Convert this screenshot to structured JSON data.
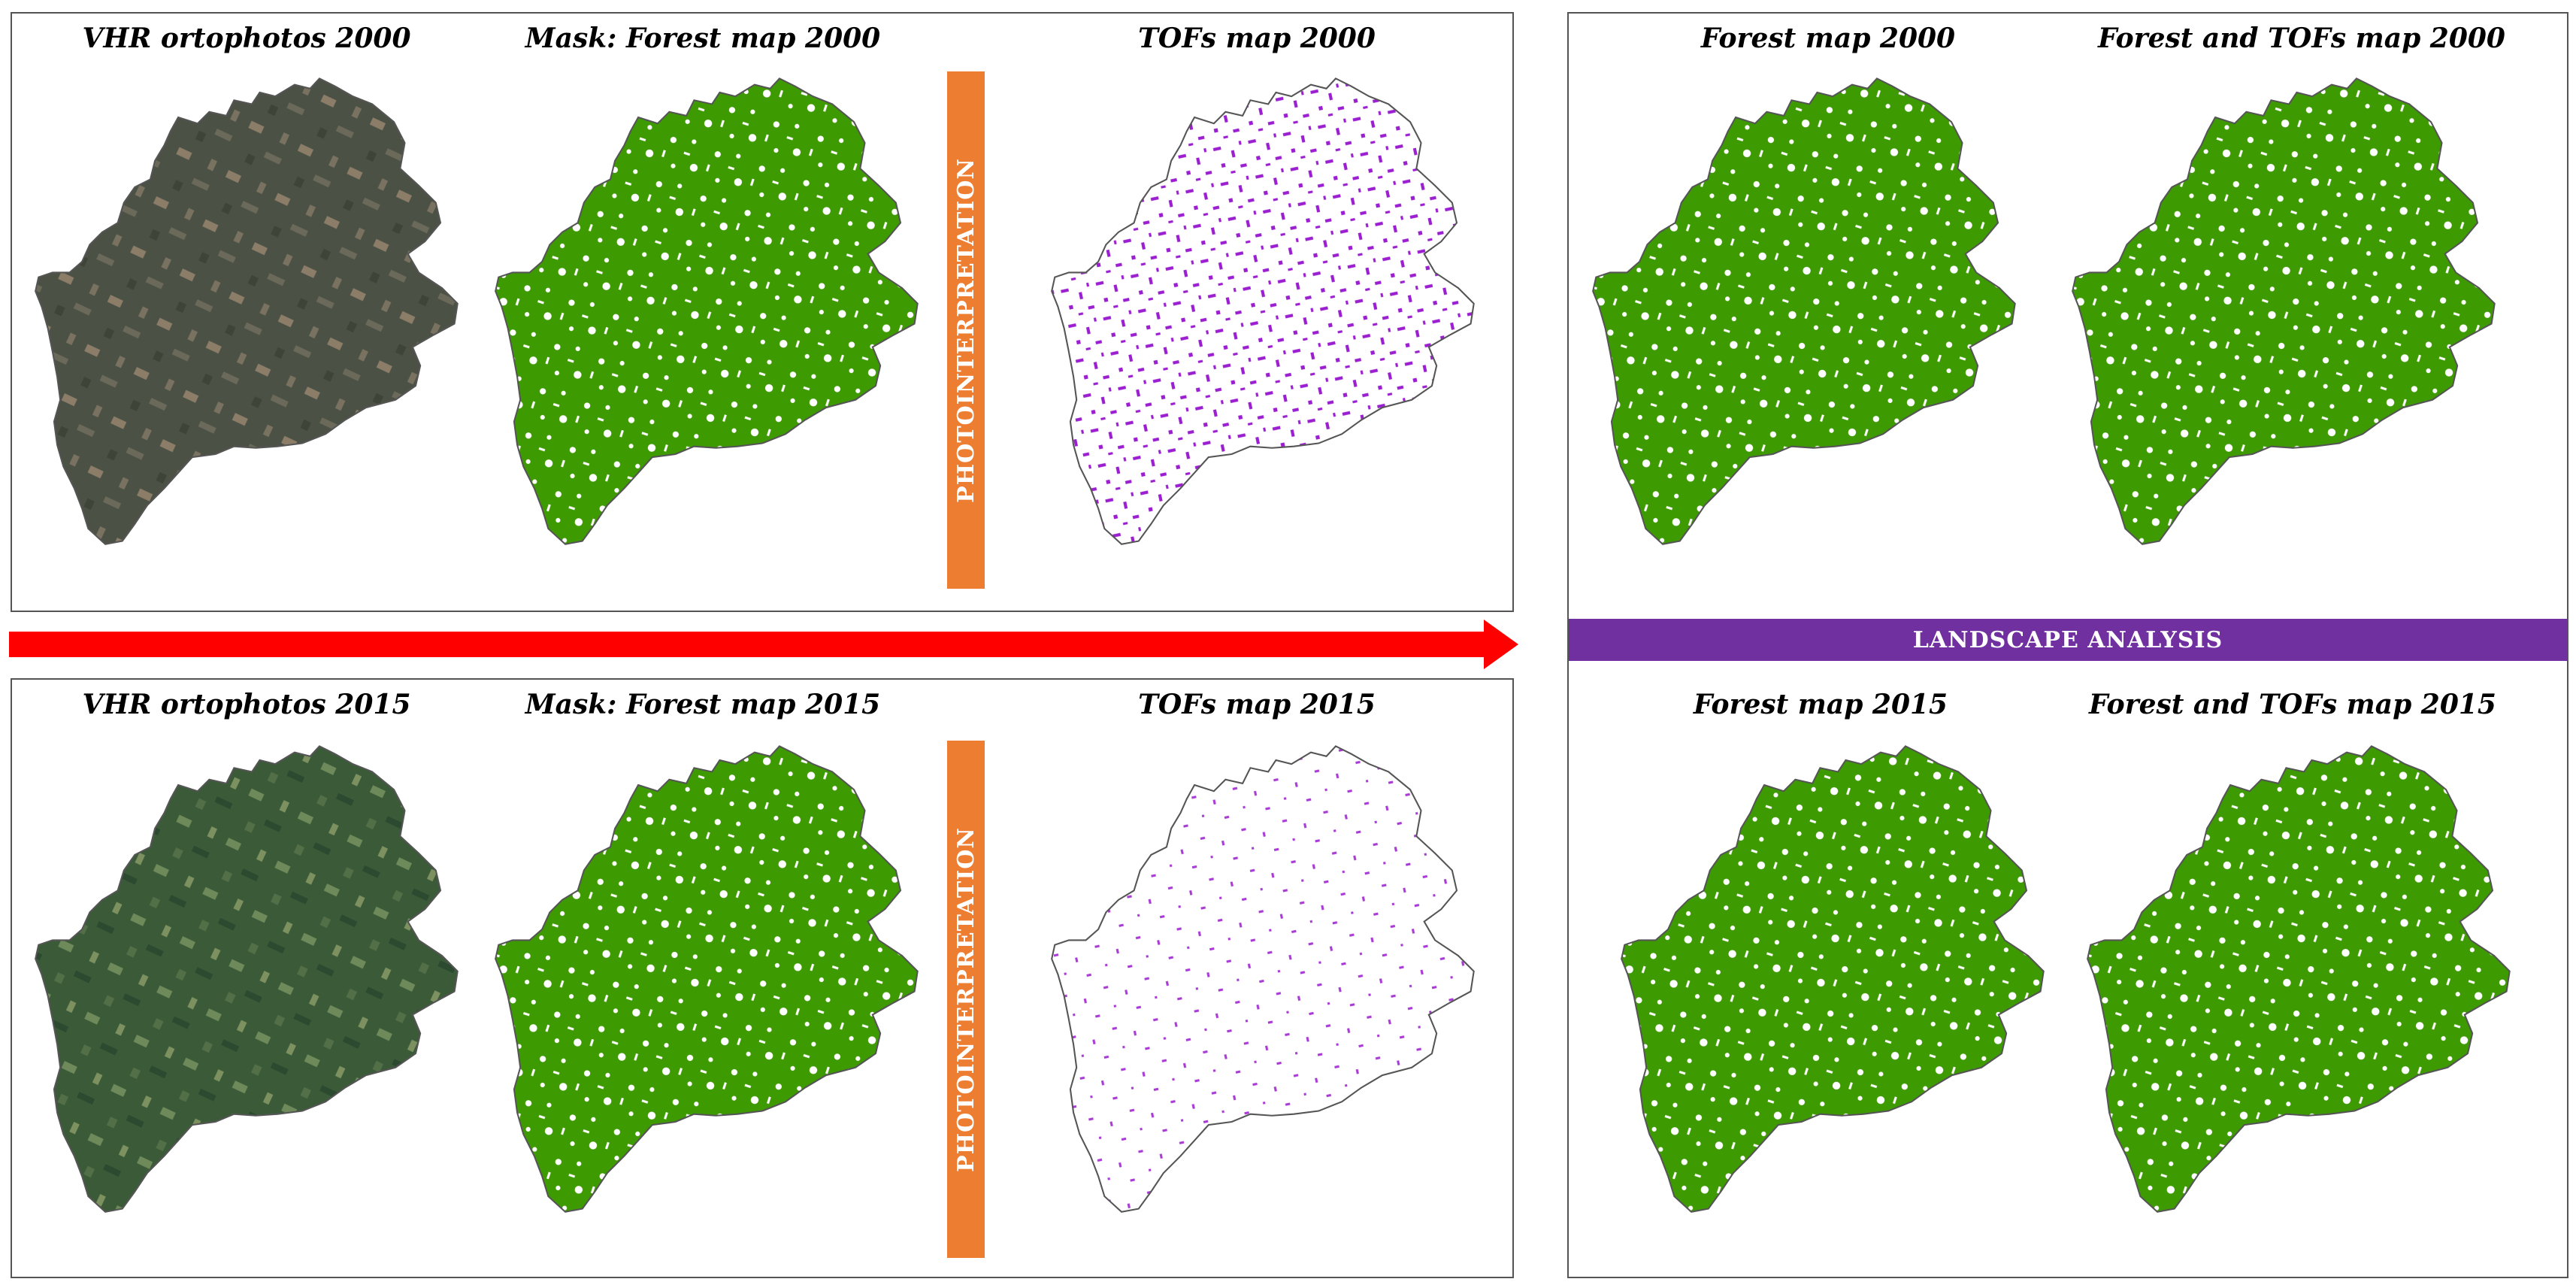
{
  "colors": {
    "forest": "#3d9a00",
    "tofs": "#9b1fd0",
    "ortho_2000_base": "#4b5145",
    "ortho_2000_tan": "#8b7d68",
    "ortho_2015_base": "#3a5a38",
    "ortho_2015_light": "#6e8a5a",
    "photointerpretation_bar": "#ed7d31",
    "landscape_bar": "#7030a0",
    "arrow": "#ff0000",
    "outline": "#555555"
  },
  "left_top": {
    "ortho_title": "VHR ortophotos 2000",
    "mask_title": "Mask: Forest map 2000",
    "tofs_title": "TOFs map 2000",
    "bar_label": "PHOTOINTERPRETATION"
  },
  "left_bottom": {
    "ortho_title": "VHR ortophotos 2015",
    "mask_title": "Mask: Forest map 2015",
    "tofs_title": "TOFs map 2015",
    "bar_label": "PHOTOINTERPRETATION"
  },
  "right": {
    "forest_2000_title": "Forest map 2000",
    "forest_tofs_2000_title": "Forest and TOFs map 2000",
    "landscape_label": "LANDSCAPE ANALYSIS",
    "forest_2015_title": "Forest map 2015",
    "forest_tofs_2015_title": "Forest and TOFs map 2015"
  }
}
